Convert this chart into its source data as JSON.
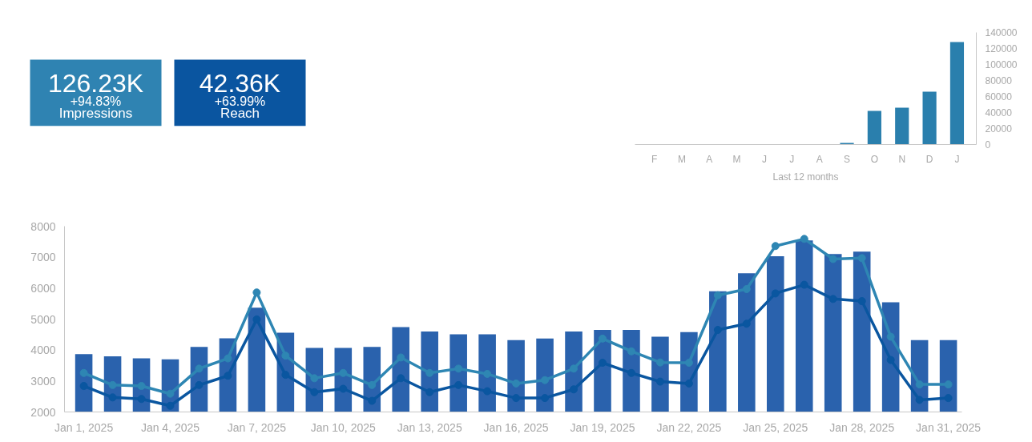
{
  "chart_data": [
    {
      "type": "other",
      "categories": [
        "Impressions",
        "Reach"
      ],
      "annotations": [
        "126.23K",
        "+94.83%",
        "42.36K",
        "+63.99%"
      ],
      "colors": [
        "#2f83b2",
        "#0a55a0"
      ]
    },
    {
      "type": "bar",
      "categories": [
        "F",
        "M",
        "A",
        "M",
        "J",
        "J",
        "A",
        "S",
        "O",
        "N",
        "D",
        "J"
      ],
      "xlabel": "Last 12 months",
      "series": [
        {
          "color": "#2a7fad",
          "axis": "y2",
          "values": [
            0,
            0,
            0,
            0,
            0,
            0,
            0,
            2000,
            42000,
            46000,
            66000,
            128000
          ]
        }
      ],
      "y2lim": [
        0,
        140000
      ],
      "y2ticks": [
        0,
        20000,
        40000,
        60000,
        80000,
        100000,
        120000,
        140000
      ]
    },
    {
      "type": "bar",
      "marker": "circle",
      "categories": [
        "Jan 1, 2025",
        null,
        null,
        "Jan 4, 2025",
        null,
        null,
        "Jan 7, 2025",
        null,
        null,
        "Jan 10, 2025",
        null,
        null,
        "Jan 13, 2025",
        null,
        null,
        "Jan 16, 2025",
        null,
        null,
        "Jan 19, 2025",
        null,
        null,
        "Jan 22, 2025",
        null,
        null,
        "Jan 25, 2025",
        null,
        null,
        "Jan 28, 2025",
        null,
        null,
        "Jan 31, 2025"
      ],
      "series": [
        {
          "type": "bar",
          "color": "#2a62ad",
          "values": [
            3870,
            3800,
            3730,
            3700,
            4100,
            4380,
            5370,
            4560,
            4070,
            4070,
            4100,
            4740,
            4600,
            4510,
            4510,
            4320,
            4370,
            4600,
            4650,
            4650,
            4430,
            4580,
            5900,
            6480,
            7030,
            7540,
            7100,
            7180,
            5540,
            4320,
            4320
          ]
        },
        {
          "type": "line",
          "color": "#2e86b3",
          "values": [
            3260,
            2870,
            2840,
            2590,
            3400,
            3730,
            5860,
            3820,
            3090,
            3260,
            2870,
            3760,
            3260,
            3400,
            3230,
            2920,
            3030,
            3400,
            4370,
            3960,
            3600,
            3590,
            5770,
            5970,
            7360,
            7590,
            6940,
            6970,
            4430,
            2890,
            2890
          ]
        },
        {
          "type": "line",
          "color": "#0a56a0",
          "values": [
            2840,
            2470,
            2420,
            2200,
            2870,
            3170,
            4990,
            3200,
            2640,
            2750,
            2360,
            3090,
            2640,
            2870,
            2670,
            2450,
            2450,
            2730,
            3590,
            3260,
            2980,
            2920,
            4650,
            4850,
            5830,
            6110,
            5650,
            5580,
            3680,
            2390,
            2450
          ]
        }
      ],
      "ylim": [
        2000,
        8000
      ],
      "yticks": [
        2000,
        3000,
        4000,
        5000,
        6000,
        7000,
        8000
      ]
    }
  ]
}
